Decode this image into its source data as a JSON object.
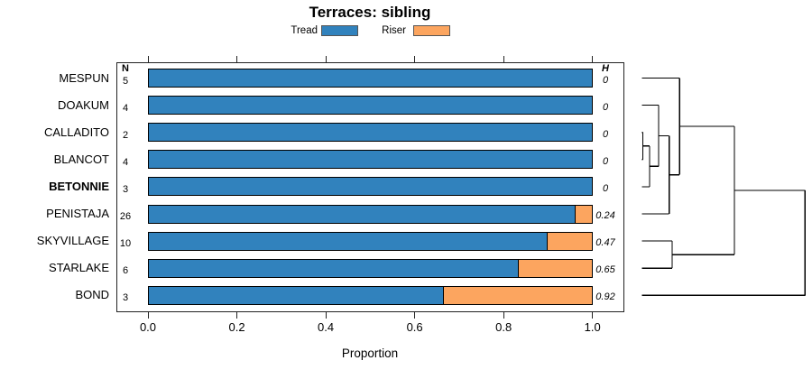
{
  "chart_data": {
    "type": "bar",
    "variant": "horizontal-stacked-proportion",
    "title": "Terraces: sibling",
    "xlabel": "Proportion",
    "x_ticks": [
      "0.0",
      "0.2",
      "0.4",
      "0.6",
      "0.8",
      "1.0"
    ],
    "xlim": [
      0.0,
      1.0
    ],
    "legend": [
      {
        "label": "Tread",
        "color": "#3182bd"
      },
      {
        "label": "Riser",
        "color": "#fca55f"
      }
    ],
    "columns": {
      "n_header": "N",
      "h_header": "H"
    },
    "series_note": "each row: proportion tread (blue) then riser (orange), bars sum to 1.0",
    "rows": [
      {
        "label": "MESPUN",
        "n": 5,
        "tread": 1.0,
        "riser": 0.0,
        "h": "0",
        "bold": false
      },
      {
        "label": "DOAKUM",
        "n": 4,
        "tread": 1.0,
        "riser": 0.0,
        "h": "0",
        "bold": false
      },
      {
        "label": "CALLADITO",
        "n": 2,
        "tread": 1.0,
        "riser": 0.0,
        "h": "0",
        "bold": false
      },
      {
        "label": "BLANCOT",
        "n": 4,
        "tread": 1.0,
        "riser": 0.0,
        "h": "0",
        "bold": false
      },
      {
        "label": "BETONNIE",
        "n": 3,
        "tread": 1.0,
        "riser": 0.0,
        "h": "0",
        "bold": true
      },
      {
        "label": "PENISTAJA",
        "n": 26,
        "tread": 0.9615,
        "riser": 0.0385,
        "h": "0.24",
        "bold": false
      },
      {
        "label": "SKYVILLAGE",
        "n": 10,
        "tread": 0.9,
        "riser": 0.1,
        "h": "0.47",
        "bold": false
      },
      {
        "label": "STARLAKE",
        "n": 6,
        "tread": 0.8333,
        "riser": 0.1667,
        "h": "0.65",
        "bold": false
      },
      {
        "label": "BOND",
        "n": 3,
        "tread": 0.6667,
        "riser": 0.3333,
        "h": "0.92",
        "bold": false
      }
    ],
    "dendrogram": {
      "orientation": "leaves-left",
      "merges": [
        {
          "a": "CALLADITO",
          "b": "BLANCOT",
          "height": 0.005
        },
        {
          "a": 0,
          "b": "BETONNIE",
          "height": 0.046
        },
        {
          "a": "DOAKUM",
          "b": 1,
          "height": 0.101
        },
        {
          "a": 2,
          "b": "PENISTAJA",
          "height": 0.166
        },
        {
          "a": "MESPUN",
          "b": 3,
          "height": 0.23
        },
        {
          "a": "SKYVILLAGE",
          "b": "STARLAKE",
          "height": 0.184
        },
        {
          "a": 4,
          "b": 5,
          "height": 0.567
        },
        {
          "a": 6,
          "b": "BOND",
          "height": 1.0
        }
      ]
    },
    "colors": {
      "tread": "#3182bd",
      "riser": "#fca55f",
      "bar_border": "#000000",
      "axis": "#222222",
      "dendrogram_line": "#000000"
    }
  }
}
